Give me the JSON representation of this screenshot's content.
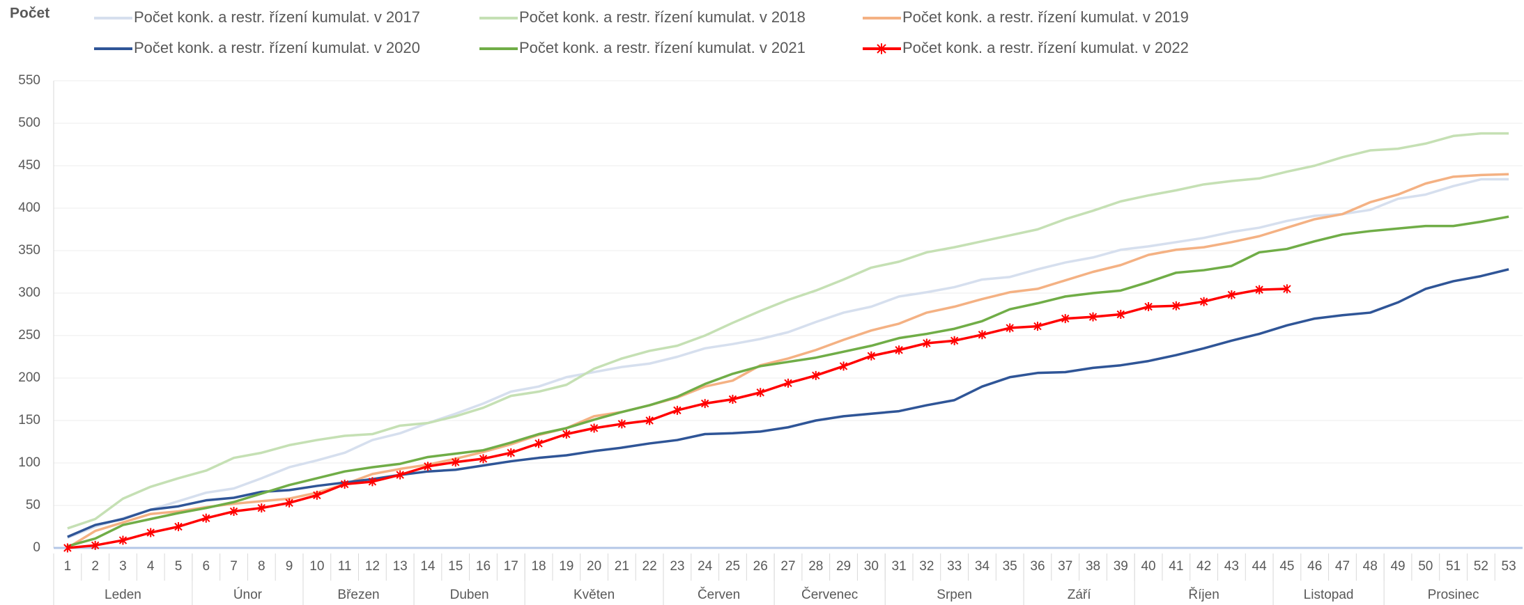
{
  "chart_data": {
    "type": "line",
    "title": "Počet",
    "categories": [
      1,
      2,
      3,
      4,
      5,
      6,
      7,
      8,
      9,
      10,
      11,
      12,
      13,
      14,
      15,
      16,
      17,
      18,
      19,
      20,
      21,
      22,
      23,
      24,
      25,
      26,
      27,
      28,
      29,
      30,
      31,
      32,
      33,
      34,
      35,
      36,
      37,
      38,
      39,
      40,
      41,
      42,
      43,
      44,
      45,
      46,
      47,
      48,
      49,
      50,
      51,
      52,
      53
    ],
    "month_groups": [
      {
        "label": "Leden",
        "first_week": 1,
        "last_week": 5
      },
      {
        "label": "Únor",
        "first_week": 6,
        "last_week": 9
      },
      {
        "label": "Březen",
        "first_week": 10,
        "last_week": 13
      },
      {
        "label": "Duben",
        "first_week": 14,
        "last_week": 17
      },
      {
        "label": "Květen",
        "first_week": 18,
        "last_week": 22
      },
      {
        "label": "Červen",
        "first_week": 23,
        "last_week": 26
      },
      {
        "label": "Červenec",
        "first_week": 27,
        "last_week": 30
      },
      {
        "label": "Srpen",
        "first_week": 31,
        "last_week": 35
      },
      {
        "label": "Září",
        "first_week": 36,
        "last_week": 39
      },
      {
        "label": "Říjen",
        "first_week": 40,
        "last_week": 44
      },
      {
        "label": "Listopad",
        "first_week": 45,
        "last_week": 48
      },
      {
        "label": "Prosinec",
        "first_week": 49,
        "last_week": 53
      }
    ],
    "series": [
      {
        "name": "Počet konk. a restr. řízení kumulat. v 2017",
        "color": "#d6dfee",
        "values": [
          12,
          25,
          35,
          45,
          55,
          65,
          70,
          82,
          95,
          103,
          112,
          127,
          135,
          147,
          158,
          170,
          184,
          190,
          201,
          207,
          213,
          217,
          225,
          235,
          240,
          246,
          254,
          266,
          277,
          284,
          296,
          301,
          307,
          316,
          319,
          328,
          336,
          342,
          351,
          355,
          360,
          365,
          372,
          377,
          385,
          391,
          393,
          398,
          411,
          416,
          426,
          434,
          434
        ]
      },
      {
        "name": "Počet konk. a restr. řízení kumulat. v 2018",
        "color": "#c5e0b4",
        "values": [
          23,
          34,
          58,
          72,
          82,
          91,
          106,
          112,
          121,
          127,
          132,
          134,
          144,
          147,
          155,
          165,
          179,
          184,
          192,
          211,
          223,
          232,
          238,
          250,
          265,
          279,
          292,
          303,
          316,
          330,
          337,
          348,
          354,
          361,
          368,
          375,
          387,
          397,
          408,
          415,
          421,
          428,
          432,
          435,
          443,
          450,
          460,
          468,
          470,
          476,
          485,
          488,
          488
        ]
      },
      {
        "name": "Počet konk. a restr. řízení kumulat. v 2019",
        "color": "#f4b183",
        "values": [
          0,
          20,
          30,
          40,
          43,
          48,
          52,
          55,
          58,
          65,
          75,
          87,
          93,
          98,
          105,
          113,
          122,
          133,
          141,
          155,
          160,
          168,
          177,
          190,
          197,
          215,
          223,
          233,
          245,
          256,
          264,
          277,
          284,
          293,
          301,
          305,
          315,
          325,
          333,
          345,
          351,
          354,
          360,
          367,
          377,
          387,
          393,
          407,
          416,
          429,
          437,
          439,
          440
        ]
      },
      {
        "name": "Počet konk. a restr. řízení kumulat. v 2020",
        "color": "#2f5597",
        "values": [
          13,
          27,
          34,
          45,
          49,
          56,
          59,
          66,
          68,
          73,
          77,
          81,
          86,
          90,
          92,
          97,
          102,
          106,
          109,
          114,
          118,
          123,
          127,
          134,
          135,
          137,
          142,
          150,
          155,
          158,
          161,
          168,
          174,
          190,
          201,
          206,
          207,
          212,
          215,
          220,
          227,
          235,
          244,
          252,
          262,
          270,
          274,
          277,
          289,
          305,
          314,
          320,
          328
        ]
      },
      {
        "name": "Počet konk. a restr. řízení kumulat. v 2021",
        "color": "#70ad47",
        "values": [
          2,
          11,
          27,
          34,
          41,
          47,
          54,
          64,
          74,
          82,
          90,
          95,
          99,
          107,
          111,
          115,
          124,
          134,
          141,
          151,
          160,
          168,
          178,
          193,
          205,
          214,
          219,
          224,
          231,
          238,
          247,
          252,
          258,
          267,
          281,
          288,
          296,
          300,
          303,
          313,
          324,
          327,
          332,
          348,
          352,
          361,
          369,
          373,
          376,
          379,
          379,
          384,
          390
        ]
      },
      {
        "name": "Počet konk. a restr. řízení kumulat. v 2022",
        "color": "#ff0000",
        "marker": "asterisk",
        "values": [
          0,
          3,
          9,
          18,
          25,
          35,
          43,
          47,
          53,
          62,
          75,
          78,
          86,
          96,
          101,
          105,
          112,
          123,
          134,
          141,
          146,
          150,
          162,
          170,
          175,
          183,
          194,
          203,
          214,
          226,
          233,
          241,
          244,
          251,
          259,
          261,
          270,
          272,
          275,
          284,
          285,
          290,
          298,
          304,
          305,
          null,
          null,
          null,
          null,
          null,
          null,
          null,
          null
        ]
      }
    ],
    "ylim": [
      0,
      550
    ],
    "yticks": [
      0,
      50,
      100,
      150,
      200,
      250,
      300,
      350,
      400,
      450,
      500,
      550
    ],
    "grid": true
  }
}
